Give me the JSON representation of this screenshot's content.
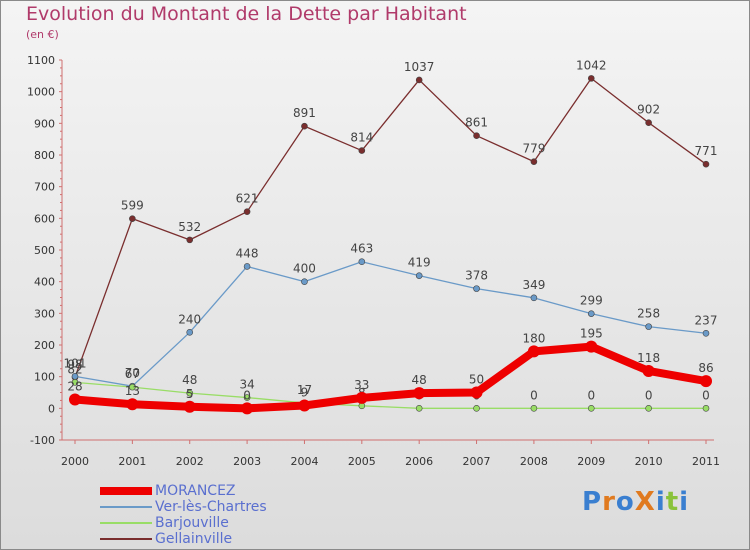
{
  "title": "Evolution du Montant de la Dette par Habitant",
  "subtitle": "(en €)",
  "logo": {
    "text": "ProXiti",
    "letter_colors": [
      "#3a7fd0",
      "#e07a1f",
      "#3a7fd0",
      "#e07a1f",
      "#3a7fd0",
      "#8ac23a",
      "#3a7fd0"
    ]
  },
  "chart_data": {
    "type": "line",
    "title": "Evolution du Montant de la Dette par Habitant",
    "ylabel": "(en €)",
    "xlabel": "",
    "x": [
      "2000",
      "2001",
      "2002",
      "2003",
      "2004",
      "2005",
      "2006",
      "2007",
      "2008",
      "2009",
      "2010",
      "2011"
    ],
    "ylim": [
      -100,
      1100
    ],
    "yticks": [
      -100,
      0,
      100,
      200,
      300,
      400,
      500,
      600,
      700,
      800,
      900,
      1000,
      1100
    ],
    "grid": false,
    "legend_position": "bottom-left",
    "series": [
      {
        "name": "MORANCEZ",
        "color": "#ee0000",
        "width": 8,
        "values": [
          28,
          13,
          5,
          0,
          9,
          33,
          48,
          50,
          180,
          195,
          118,
          86
        ]
      },
      {
        "name": "Ver-lès-Chartres",
        "color": "#6a9ac8",
        "width": 1.3,
        "values": [
          101,
          70,
          240,
          448,
          400,
          463,
          419,
          378,
          349,
          299,
          258,
          237
        ]
      },
      {
        "name": "Barjouville",
        "color": "#99dd66",
        "width": 1.3,
        "values": [
          82,
          67,
          48,
          34,
          17,
          8,
          0,
          0,
          0,
          0,
          0,
          0
        ]
      },
      {
        "name": "Gellainville",
        "color": "#7a2e2e",
        "width": 1.3,
        "values": [
          98,
          599,
          532,
          621,
          891,
          814,
          1037,
          861,
          779,
          1042,
          902,
          771
        ]
      }
    ]
  }
}
